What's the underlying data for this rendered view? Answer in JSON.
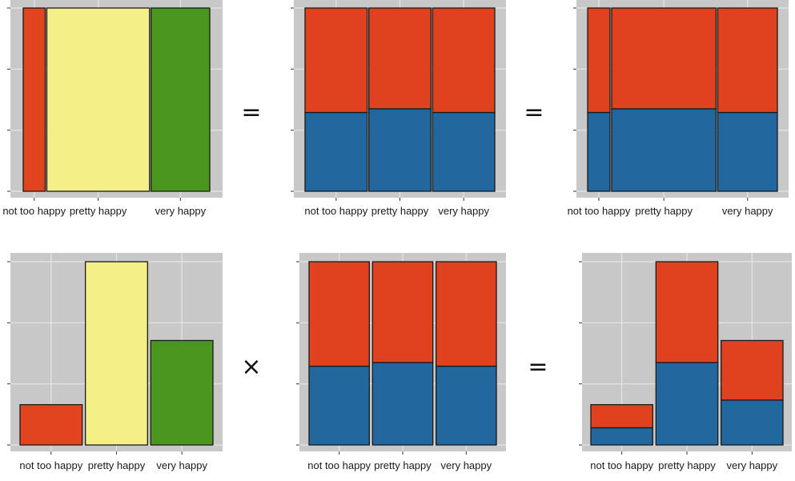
{
  "colors": {
    "panel_bg": "#c8c8c8",
    "grid": "#e6e6e6",
    "not_too_happy": "#e24420",
    "pretty_happy": "#f4ef86",
    "very_happy": "#4a961e",
    "cond_top": "#e0421f",
    "cond_bottom": "#23679f",
    "bar_stroke": "#1a1a1a"
  },
  "operators": {
    "top_first": "=",
    "top_second": "=",
    "bottom_first": "×",
    "bottom_second": "="
  },
  "chart_data": [
    {
      "id": "top-left",
      "type": "bar",
      "description_role": "spine",
      "categories": [
        "not too happy",
        "pretty happy",
        "very happy"
      ],
      "widths": [
        0.12,
        0.56,
        0.32
      ],
      "series": [
        {
          "key": "all",
          "values": [
            1,
            1,
            1
          ],
          "colors": [
            "#e24420",
            "#f4ef86",
            "#4a961e"
          ]
        }
      ],
      "ylim": [
        0,
        1
      ]
    },
    {
      "id": "top-middle",
      "type": "bar",
      "categories": [
        "not too happy",
        "pretty happy",
        "very happy"
      ],
      "widths": [
        1,
        1,
        1
      ],
      "series": [
        {
          "key": "bottom",
          "values": [
            0.43,
            0.45,
            0.43
          ],
          "color": "#23679f"
        },
        {
          "key": "top",
          "values": [
            0.57,
            0.55,
            0.57
          ],
          "color": "#e0421f"
        }
      ],
      "ylim": [
        0,
        1
      ]
    },
    {
      "id": "top-right",
      "type": "bar",
      "categories": [
        "not too happy",
        "pretty happy",
        "very happy"
      ],
      "widths": [
        0.12,
        0.56,
        0.32
      ],
      "series": [
        {
          "key": "bottom",
          "values": [
            0.43,
            0.45,
            0.43
          ],
          "color": "#23679f"
        },
        {
          "key": "top",
          "values": [
            0.57,
            0.55,
            0.57
          ],
          "color": "#e0421f"
        }
      ],
      "ylim": [
        0,
        1
      ]
    },
    {
      "id": "bottom-left",
      "type": "bar",
      "categories": [
        "not too happy",
        "pretty happy",
        "very happy"
      ],
      "widths": [
        1,
        1,
        1
      ],
      "series": [
        {
          "key": "all",
          "values": [
            0.22,
            1.0,
            0.57
          ],
          "colors": [
            "#e24420",
            "#f4ef86",
            "#4a961e"
          ]
        }
      ],
      "ylim": [
        0,
        1
      ]
    },
    {
      "id": "bottom-middle",
      "type": "bar",
      "categories": [
        "not too happy",
        "pretty happy",
        "very happy"
      ],
      "widths": [
        1,
        1,
        1
      ],
      "series": [
        {
          "key": "bottom",
          "values": [
            0.43,
            0.45,
            0.43
          ],
          "color": "#23679f"
        },
        {
          "key": "top",
          "values": [
            0.57,
            0.55,
            0.57
          ],
          "color": "#e0421f"
        }
      ],
      "ylim": [
        0,
        1
      ]
    },
    {
      "id": "bottom-right",
      "type": "bar",
      "categories": [
        "not too happy",
        "pretty happy",
        "very happy"
      ],
      "widths": [
        1,
        1,
        1
      ],
      "series": [
        {
          "key": "bottom",
          "values": [
            0.094,
            0.45,
            0.245
          ],
          "color": "#23679f"
        },
        {
          "key": "top",
          "values": [
            0.126,
            0.55,
            0.325
          ],
          "color": "#e0421f"
        }
      ],
      "ylim": [
        0,
        1
      ]
    }
  ]
}
